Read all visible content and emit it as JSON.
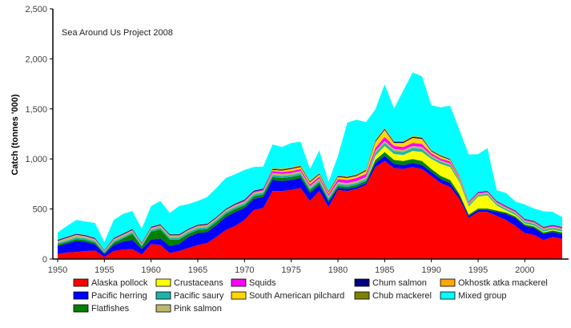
{
  "chart_data": {
    "type": "area",
    "stacked": true,
    "title": "",
    "annotation": "Sea Around Us Project 2008",
    "xlabel": "",
    "ylabel": "Catch (tonnes '000)",
    "ylim": [
      0,
      2500
    ],
    "xlim": [
      1950,
      2004
    ],
    "yticks": [
      0,
      500,
      1000,
      1500,
      2000,
      2500
    ],
    "ytick_labels": [
      "0",
      "500",
      "1,000",
      "1,500",
      "2,000",
      "2,500"
    ],
    "xticks": [
      1950,
      1955,
      1960,
      1965,
      1970,
      1975,
      1980,
      1985,
      1990,
      1995,
      2000
    ],
    "xtick_labels": [
      "1950",
      "1955",
      "1960",
      "1965",
      "1970",
      "1975",
      "1980",
      "1985",
      "1990",
      "1995",
      "2000"
    ],
    "grid": false,
    "legend_position": "bottom",
    "x": [
      1950,
      1951,
      1952,
      1953,
      1954,
      1955,
      1956,
      1957,
      1958,
      1959,
      1960,
      1961,
      1962,
      1963,
      1964,
      1965,
      1966,
      1967,
      1968,
      1969,
      1970,
      1971,
      1972,
      1973,
      1974,
      1975,
      1976,
      1977,
      1978,
      1979,
      1980,
      1981,
      1982,
      1983,
      1984,
      1985,
      1986,
      1987,
      1988,
      1989,
      1990,
      1991,
      1992,
      1993,
      1994,
      1995,
      1996,
      1997,
      1998,
      1999,
      2000,
      2001,
      2002,
      2003,
      2004
    ],
    "series": [
      {
        "name": "Alaska  pollock",
        "color": "#ff0000",
        "values": [
          50,
          65,
          70,
          80,
          85,
          20,
          80,
          95,
          100,
          45,
          150,
          140,
          60,
          80,
          110,
          140,
          160,
          220,
          290,
          330,
          390,
          490,
          510,
          680,
          680,
          690,
          710,
          580,
          680,
          520,
          690,
          680,
          700,
          740,
          920,
          980,
          910,
          900,
          920,
          900,
          830,
          760,
          720,
          600,
          410,
          470,
          470,
          430,
          390,
          330,
          260,
          240,
          190,
          220,
          200
        ]
      },
      {
        "name": "Pacific herring",
        "color": "#0000ff",
        "values": [
          80,
          90,
          110,
          90,
          60,
          30,
          60,
          80,
          90,
          55,
          45,
          65,
          70,
          70,
          110,
          120,
          110,
          120,
          130,
          140,
          120,
          110,
          110,
          110,
          100,
          100,
          100,
          80,
          60,
          50,
          20,
          20,
          20,
          20,
          40,
          50,
          40,
          40,
          40,
          40,
          40,
          40,
          40,
          30,
          20,
          20,
          20,
          40,
          60,
          80,
          70,
          70,
          60,
          50,
          50
        ]
      },
      {
        "name": "Flatfishes",
        "color": "#008000",
        "values": [
          15,
          15,
          18,
          18,
          18,
          10,
          20,
          30,
          60,
          25,
          80,
          90,
          65,
          45,
          30,
          30,
          30,
          30,
          30,
          30,
          25,
          25,
          25,
          30,
          30,
          30,
          30,
          25,
          25,
          20,
          20,
          20,
          20,
          20,
          30,
          40,
          40,
          40,
          40,
          40,
          30,
          30,
          30,
          20,
          15,
          15,
          15,
          15,
          15,
          15,
          15,
          15,
          15,
          15,
          15
        ]
      },
      {
        "name": "Crustaceans",
        "color": "#ffff00",
        "values": [
          0,
          0,
          0,
          0,
          0,
          0,
          0,
          0,
          0,
          0,
          0,
          0,
          0,
          0,
          0,
          0,
          0,
          0,
          0,
          0,
          0,
          0,
          0,
          0,
          0,
          0,
          0,
          0,
          0,
          0,
          0,
          0,
          0,
          0,
          40,
          60,
          60,
          60,
          80,
          90,
          100,
          120,
          130,
          120,
          80,
          120,
          130,
          50,
          20,
          15,
          10,
          10,
          10,
          10,
          10
        ]
      },
      {
        "name": "Pacific saury",
        "color": "#20b2aa",
        "values": [
          15,
          15,
          18,
          18,
          15,
          10,
          18,
          18,
          18,
          12,
          15,
          20,
          20,
          20,
          20,
          20,
          20,
          20,
          20,
          20,
          20,
          20,
          20,
          20,
          20,
          20,
          20,
          20,
          20,
          20,
          20,
          20,
          20,
          20,
          30,
          30,
          30,
          30,
          30,
          30,
          20,
          20,
          20,
          20,
          15,
          15,
          15,
          15,
          15,
          15,
          15,
          15,
          15,
          15,
          15
        ]
      },
      {
        "name": "Pink salmon",
        "color": "#bdb76b",
        "values": [
          20,
          25,
          25,
          20,
          20,
          10,
          20,
          20,
          20,
          15,
          20,
          20,
          20,
          20,
          20,
          20,
          20,
          20,
          20,
          20,
          20,
          20,
          20,
          20,
          20,
          20,
          20,
          20,
          20,
          20,
          20,
          20,
          20,
          20,
          20,
          20,
          20,
          20,
          20,
          20,
          15,
          15,
          15,
          15,
          15,
          15,
          15,
          15,
          15,
          15,
          15,
          15,
          15,
          15,
          15
        ]
      },
      {
        "name": "Squids",
        "color": "#ff00ff",
        "values": [
          3,
          3,
          3,
          3,
          3,
          3,
          3,
          3,
          3,
          3,
          3,
          3,
          3,
          3,
          3,
          3,
          3,
          3,
          3,
          5,
          10,
          10,
          10,
          20,
          20,
          20,
          20,
          20,
          20,
          20,
          30,
          30,
          30,
          30,
          30,
          40,
          30,
          30,
          30,
          30,
          20,
          20,
          20,
          10,
          10,
          10,
          10,
          10,
          10,
          10,
          10,
          10,
          10,
          10,
          10
        ]
      },
      {
        "name": "South American pilchard",
        "color": "#ffd700",
        "values": [
          0,
          0,
          0,
          0,
          0,
          0,
          0,
          0,
          0,
          0,
          0,
          0,
          0,
          0,
          0,
          0,
          0,
          0,
          0,
          0,
          0,
          0,
          0,
          10,
          15,
          20,
          20,
          20,
          20,
          15,
          20,
          20,
          20,
          30,
          60,
          70,
          30,
          40,
          50,
          50,
          20,
          20,
          15,
          10,
          5,
          0,
          0,
          0,
          0,
          0,
          0,
          0,
          0,
          0,
          0
        ]
      },
      {
        "name": "Chum salmon",
        "color": "#000080",
        "values": [
          8,
          8,
          8,
          8,
          8,
          5,
          8,
          8,
          8,
          6,
          8,
          8,
          8,
          8,
          8,
          8,
          8,
          8,
          8,
          8,
          8,
          8,
          8,
          8,
          8,
          8,
          8,
          8,
          8,
          8,
          8,
          8,
          8,
          8,
          10,
          10,
          10,
          10,
          10,
          10,
          8,
          8,
          8,
          6,
          5,
          5,
          5,
          5,
          5,
          5,
          5,
          5,
          5,
          5,
          5
        ]
      },
      {
        "name": "Chub mackerel",
        "color": "#808000",
        "values": [
          2,
          2,
          2,
          2,
          2,
          2,
          2,
          2,
          2,
          2,
          2,
          2,
          2,
          2,
          2,
          2,
          2,
          2,
          2,
          2,
          2,
          2,
          2,
          5,
          5,
          5,
          5,
          5,
          5,
          5,
          5,
          5,
          5,
          5,
          5,
          5,
          5,
          5,
          5,
          5,
          3,
          3,
          3,
          3,
          2,
          2,
          2,
          2,
          2,
          2,
          2,
          2,
          2,
          2,
          2
        ]
      },
      {
        "name": "Okhostk atka mackerel",
        "color": "#ffa500",
        "values": [
          2,
          2,
          2,
          2,
          2,
          2,
          2,
          2,
          2,
          2,
          2,
          2,
          2,
          2,
          2,
          2,
          2,
          2,
          2,
          2,
          2,
          2,
          2,
          5,
          5,
          5,
          5,
          5,
          5,
          5,
          5,
          5,
          5,
          5,
          5,
          5,
          5,
          5,
          5,
          5,
          3,
          3,
          3,
          3,
          2,
          2,
          2,
          2,
          2,
          2,
          2,
          2,
          2,
          2,
          2
        ]
      },
      {
        "name": "Mixed group",
        "color": "#00ffff",
        "values": [
          70,
          107,
          134,
          134,
          147,
          78,
          177,
          192,
          177,
          137,
          205,
          230,
          210,
          280,
          245,
          235,
          265,
          285,
          305,
          290,
          293,
          232,
          218,
          237,
          217,
          242,
          234,
          117,
          222,
          87,
          192,
          535,
          545,
          470,
          305,
          435,
          325,
          505,
          635,
          605,
          448,
          478,
          529,
          453,
          466,
          373,
          425,
          103,
          126,
          85,
          141,
          121,
          153,
          126,
          96
        ]
      }
    ]
  }
}
